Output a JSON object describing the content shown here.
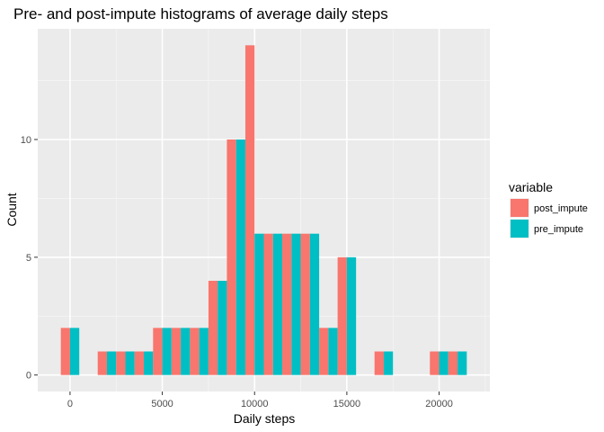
{
  "chart_data": {
    "type": "bar",
    "title": "Pre- and post-impute histograms of average daily steps",
    "xlabel": "Daily steps",
    "ylabel": "Count",
    "xlim": [
      -1750,
      22750
    ],
    "ylim": [
      -0.7,
      14.7
    ],
    "x_ticks": [
      {
        "value": 0,
        "label": "0"
      },
      {
        "value": 5000,
        "label": "5000"
      },
      {
        "value": 10000,
        "label": "10000"
      },
      {
        "value": 15000,
        "label": "15000"
      },
      {
        "value": 20000,
        "label": "20000"
      }
    ],
    "y_ticks": [
      {
        "value": 0,
        "label": "0"
      },
      {
        "value": 5,
        "label": "5"
      },
      {
        "value": 10,
        "label": "10"
      }
    ],
    "bin_width": 1000,
    "categories": [
      0,
      2000,
      3000,
      4000,
      5000,
      6000,
      7000,
      8000,
      9000,
      10000,
      11000,
      12000,
      13000,
      14000,
      15000,
      17000,
      20000,
      21000
    ],
    "series": [
      {
        "name": "post_impute",
        "color": "#F8766D",
        "values": [
          2,
          1,
          1,
          1,
          2,
          2,
          2,
          4,
          10,
          14,
          6,
          6,
          6,
          2,
          5,
          1,
          1,
          1
        ]
      },
      {
        "name": "pre_impute",
        "color": "#00BFC4",
        "values": [
          2,
          1,
          1,
          1,
          2,
          2,
          2,
          4,
          10,
          6,
          6,
          6,
          6,
          2,
          5,
          1,
          1,
          1
        ]
      }
    ],
    "legend": {
      "title": "variable",
      "position": "right"
    },
    "grid": true
  }
}
